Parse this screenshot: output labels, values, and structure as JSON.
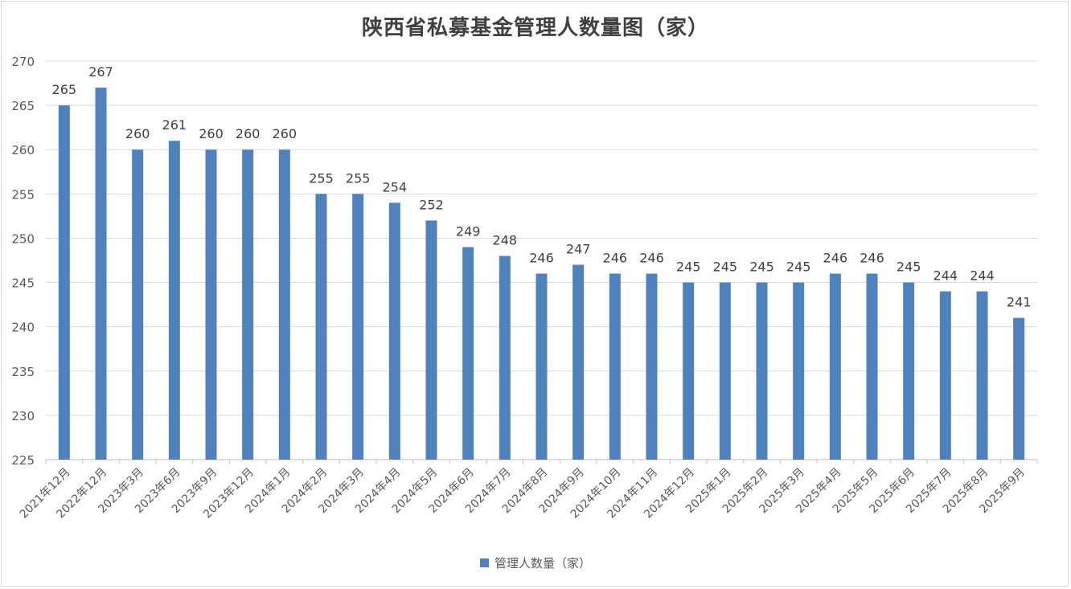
{
  "chart_data": {
    "type": "bar",
    "title": "陕西省私募基金管理人数量图（家）",
    "xlabel": "",
    "ylabel": "",
    "ylim": [
      225,
      270
    ],
    "yticks": [
      225,
      230,
      235,
      240,
      245,
      250,
      255,
      260,
      265,
      270
    ],
    "grid": true,
    "legend_position": "bottom",
    "data_labels": true,
    "bar_color": "#4e81bd",
    "categories": [
      "2021年12月",
      "2022年12月",
      "2023年3月",
      "2023年6月",
      "2023年9月",
      "2023年12月",
      "2024年1月",
      "2024年2月",
      "2024年3月",
      "2024年4月",
      "2024年5月",
      "2024年6月",
      "2024年7月",
      "2024年8月",
      "2024年9月",
      "2024年10月",
      "2024年11月",
      "2024年12月",
      "2025年1月",
      "2025年2月",
      "2025年3月",
      "2025年4月",
      "2025年5月",
      "2025年6月",
      "2025年7月",
      "2025年8月",
      "2025年9月"
    ],
    "series": [
      {
        "name": "管理人数量（家）",
        "values": [
          265,
          267,
          260,
          261,
          260,
          260,
          260,
          255,
          255,
          254,
          252,
          249,
          248,
          246,
          247,
          246,
          246,
          245,
          245,
          245,
          245,
          246,
          246,
          245,
          244,
          244,
          241
        ]
      }
    ]
  },
  "title": "陕西省私募基金管理人数量图（家）",
  "legend": {
    "label": "管理人数量（家）"
  }
}
